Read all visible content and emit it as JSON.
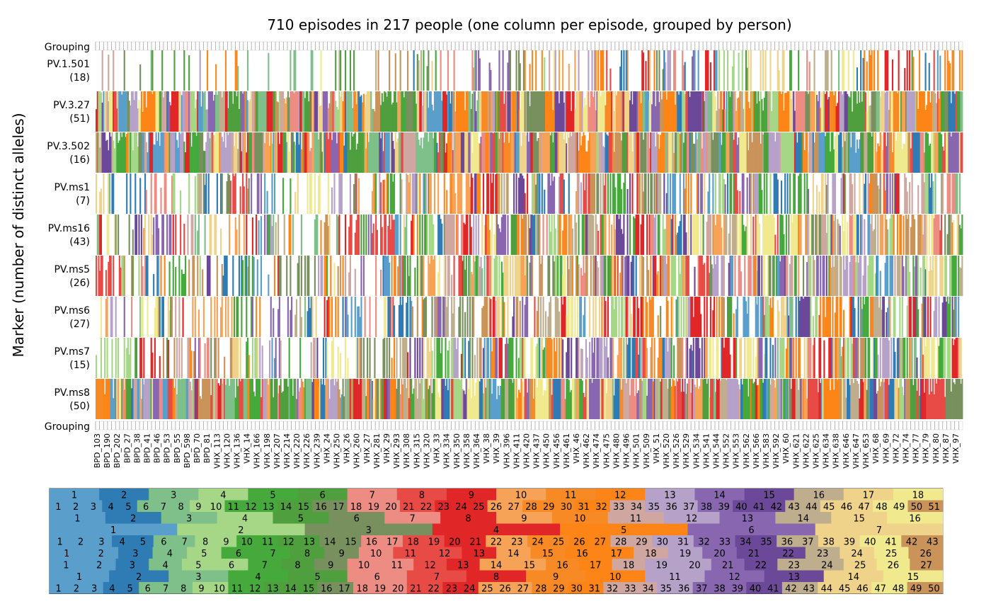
{
  "chart_data": {
    "type": "heatmap",
    "title": "710 episodes in 217 people (one column per episode, grouped by person)",
    "ylabel": "Marker (number of distinct alleles)",
    "grouping_label": "Grouping",
    "n_episodes": 710,
    "n_people": 217,
    "markers": [
      {
        "name": "PV.1.501",
        "alleles": 18,
        "label_line1": "PV.1.501",
        "label_line2": "(18)",
        "density": 0.35
      },
      {
        "name": "PV.3.27",
        "alleles": 51,
        "label_line1": "PV.3.27",
        "label_line2": "(51)",
        "density": 1.0
      },
      {
        "name": "PV.3.502",
        "alleles": 16,
        "label_line1": "PV.3.502",
        "label_line2": "(16)",
        "density": 1.0
      },
      {
        "name": "PV.ms1",
        "alleles": 7,
        "label_line1": "PV.ms1",
        "label_line2": "(7)",
        "density": 0.6
      },
      {
        "name": "PV.ms16",
        "alleles": 43,
        "label_line1": "PV.ms16",
        "label_line2": "(43)",
        "density": 0.7
      },
      {
        "name": "PV.ms5",
        "alleles": 26,
        "label_line1": "PV.ms5",
        "label_line2": "(26)",
        "density": 0.7
      },
      {
        "name": "PV.ms6",
        "alleles": 27,
        "label_line1": "PV.ms6",
        "label_line2": "(27)",
        "density": 0.65
      },
      {
        "name": "PV.ms7",
        "alleles": 15,
        "label_line1": "PV.ms7",
        "label_line2": "(15)",
        "density": 0.65
      },
      {
        "name": "PV.ms8",
        "alleles": 50,
        "label_line1": "PV.ms8",
        "label_line2": "(50)",
        "density": 1.0
      }
    ],
    "x_tick_labels": [
      "BPD_103",
      "BPD_190",
      "BPD_202",
      "BPD_27",
      "BPD_38",
      "BPD_41",
      "BPD_46",
      "BPD_53",
      "BPD_55",
      "BPD_598",
      "BPD_70",
      "BPD_81",
      "VHX_113",
      "VHX_120",
      "VHX_136",
      "VHX_14",
      "VHX_166",
      "VHX_198",
      "VHX_207",
      "VHX_214",
      "VHX_220",
      "VHX_226",
      "VHX_239",
      "VHX_24",
      "VHX_250",
      "VHX_26",
      "VHX_260",
      "VHX_27",
      "VHX_281",
      "VHX_29",
      "VHX_293",
      "VHX_308",
      "VHX_315",
      "VHX_320",
      "VHX_33",
      "VHX_334",
      "VHX_350",
      "VHX_358",
      "VHX_364",
      "VHX_38",
      "VHX_39",
      "VHX_396",
      "VHX_411",
      "VHX_420",
      "VHX_437",
      "VHX_450",
      "VHX_456",
      "VHX_461",
      "VHX_46",
      "VHX_462",
      "VHX_474",
      "VHX_475",
      "VHX_480",
      "VHX_496",
      "VHX_501",
      "VHX_509",
      "VHX_51",
      "VHX_520",
      "VHX_526",
      "VHX_529",
      "VHX_534",
      "VHX_541",
      "VHX_544",
      "VHX_552",
      "VHX_553",
      "VHX_562",
      "VHX_566",
      "VHX_583",
      "VHX_592",
      "VHX_60",
      "VHX_621",
      "VHX_622",
      "VHX_625",
      "VHX_634",
      "VHX_638",
      "VHX_646",
      "VHX_647",
      "VHX_653",
      "VHX_68",
      "VHX_69",
      "VHX_72",
      "VHX_74",
      "VHX_77",
      "VHX_79",
      "VHX_80",
      "VHX_87",
      "VHX_97"
    ],
    "legend_rows": [
      18,
      51,
      16,
      7,
      43,
      26,
      27,
      15,
      50
    ],
    "palette": [
      "#5a9ecb",
      "#2f7bb4",
      "#7fc08a",
      "#a5d787",
      "#45a93c",
      "#4f9f3e",
      "#77905d",
      "#ec8c82",
      "#e84b46",
      "#e02626",
      "#f6a358",
      "#f78a25",
      "#fd8416",
      "#cfa7a0",
      "#b6a1c9",
      "#8866b0",
      "#6c4898",
      "#bfae8e",
      "#efd38a",
      "#f0e98e",
      "#c9935a"
    ],
    "legend_label_color": "#111111"
  }
}
